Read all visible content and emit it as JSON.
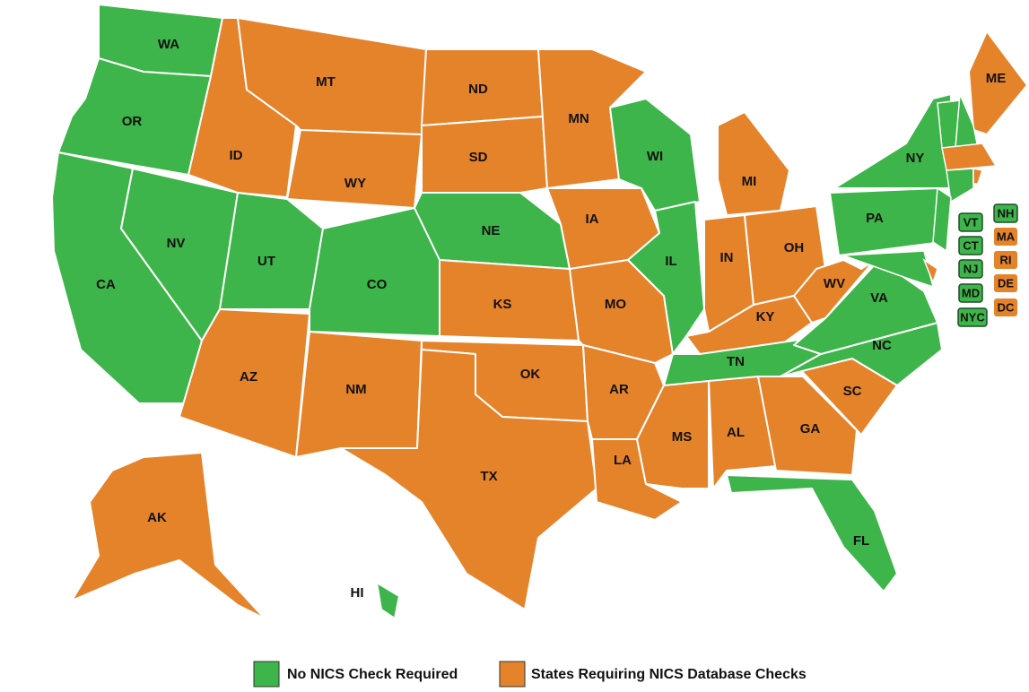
{
  "map": {
    "states": [
      {
        "label": "WA",
        "color": "#3db54a"
      },
      {
        "label": "OR",
        "color": "#3db54a"
      },
      {
        "label": "CA",
        "color": "#3db54a"
      },
      {
        "label": "NV",
        "color": "#3db54a"
      },
      {
        "label": "ID",
        "color": "#e5832b"
      },
      {
        "label": "MT",
        "color": "#e5832b"
      },
      {
        "label": "WY",
        "color": "#e5832b"
      },
      {
        "label": "UT",
        "color": "#3db54a"
      },
      {
        "label": "CO",
        "color": "#3db54a"
      },
      {
        "label": "AZ",
        "color": "#e5832b"
      },
      {
        "label": "NM",
        "color": "#e5832b"
      },
      {
        "label": "ND",
        "color": "#e5832b"
      },
      {
        "label": "SD",
        "color": "#e5832b"
      },
      {
        "label": "NE",
        "color": "#3db54a"
      },
      {
        "label": "KS",
        "color": "#e5832b"
      },
      {
        "label": "OK",
        "color": "#e5832b"
      },
      {
        "label": "TX",
        "color": "#e5832b"
      },
      {
        "label": "MN",
        "color": "#e5832b"
      },
      {
        "label": "IA",
        "color": "#e5832b"
      },
      {
        "label": "MO",
        "color": "#e5832b"
      },
      {
        "label": "AR",
        "color": "#e5832b"
      },
      {
        "label": "LA",
        "color": "#e5832b"
      },
      {
        "label": "WI",
        "color": "#3db54a"
      },
      {
        "label": "IL",
        "color": "#3db54a"
      },
      {
        "label": "MI",
        "color": "#e5832b"
      },
      {
        "label": "IN",
        "color": "#e5832b"
      },
      {
        "label": "OH",
        "color": "#e5832b"
      },
      {
        "label": "KY",
        "color": "#e5832b"
      },
      {
        "label": "TN",
        "color": "#3db54a"
      },
      {
        "label": "MS",
        "color": "#e5832b"
      },
      {
        "label": "AL",
        "color": "#e5832b"
      },
      {
        "label": "GA",
        "color": "#e5832b"
      },
      {
        "label": "SC",
        "color": "#e5832b"
      },
      {
        "label": "NC",
        "color": "#3db54a"
      },
      {
        "label": "VA",
        "color": "#3db54a"
      },
      {
        "label": "WV",
        "color": "#e5832b"
      },
      {
        "label": "PA",
        "color": "#3db54a"
      },
      {
        "label": "NY",
        "color": "#3db54a"
      },
      {
        "label": "FL",
        "color": "#3db54a"
      },
      {
        "label": "ME",
        "color": "#e5832b"
      },
      {
        "label": "AK",
        "color": "#e5832b"
      },
      {
        "label": "HI",
        "color": "#3db54a"
      }
    ],
    "badges": [
      {
        "label": "VT",
        "color": "#3db54a"
      },
      {
        "label": "NH",
        "color": "#3db54a"
      },
      {
        "label": "CT",
        "color": "#3db54a"
      },
      {
        "label": "MA",
        "color": "#e5832b"
      },
      {
        "label": "NJ",
        "color": "#3db54a"
      },
      {
        "label": "RI",
        "color": "#e5832b"
      },
      {
        "label": "MD",
        "color": "#3db54a"
      },
      {
        "label": "DE",
        "color": "#e5832b"
      },
      {
        "label": "NYC",
        "color": "#3db54a"
      },
      {
        "label": "DC",
        "color": "#e5832b"
      }
    ],
    "legend": [
      {
        "label": "No NICS Check Required",
        "color": "#3db54a"
      },
      {
        "label": "States Requiring NICS Database Checks",
        "color": "#e5832b"
      }
    ]
  }
}
